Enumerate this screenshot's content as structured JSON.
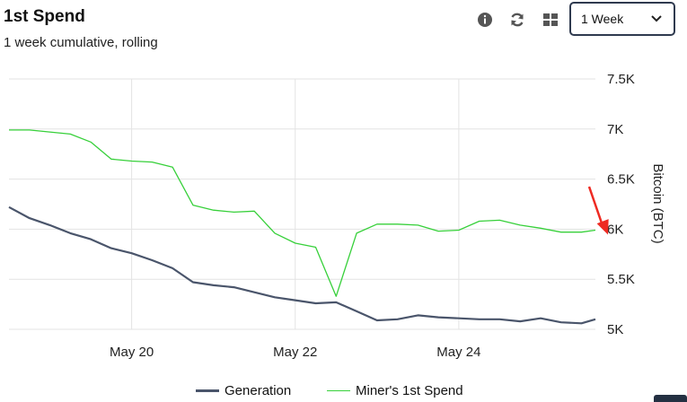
{
  "header": {
    "title": "1st Spend",
    "subtitle": "1 week cumulative, rolling"
  },
  "toolbar": {
    "icons": [
      "info-icon",
      "refresh-icon",
      "grid-icon"
    ],
    "range_selected": "1 Week"
  },
  "colors": {
    "generation": "#4a556b",
    "miners_1st_spend": "#37d03a",
    "annotation_arrow": "#ee2a22",
    "gridline": "#e3e3e3"
  },
  "chart_data": {
    "type": "line",
    "title": "1st Spend",
    "subtitle": "1 week cumulative, rolling",
    "xlabel": "",
    "ylabel": "Bitcoin (BTC)",
    "x_tick_labels": [
      "May 20",
      "May 22",
      "May 24"
    ],
    "x_range": [
      "May 18 12:00",
      "May 25 16:00"
    ],
    "y_ticks": [
      5000,
      5500,
      6000,
      6500,
      7000,
      7500
    ],
    "y_tick_labels": [
      "5K",
      "5.5K",
      "6K",
      "6.5K",
      "7K",
      "7.5K"
    ],
    "ylim": [
      5000,
      7500
    ],
    "grid": true,
    "legend_position": "bottom",
    "annotation": "red arrow pointing at the latest Miner's 1st Spend value",
    "x_days": [
      18.5,
      18.75,
      19.0,
      19.25,
      19.5,
      19.75,
      20.0,
      20.25,
      20.5,
      20.75,
      21.0,
      21.25,
      21.5,
      21.75,
      22.0,
      22.25,
      22.5,
      22.75,
      23.0,
      23.25,
      23.5,
      23.75,
      24.0,
      24.25,
      24.5,
      24.75,
      25.0,
      25.25,
      25.5,
      25.67
    ],
    "series": [
      {
        "name": "Generation",
        "values": [
          6220,
          6110,
          6040,
          5960,
          5900,
          5810,
          5760,
          5690,
          5610,
          5470,
          5440,
          5420,
          5370,
          5320,
          5290,
          5260,
          5270,
          5180,
          5090,
          5100,
          5140,
          5120,
          5110,
          5100,
          5100,
          5080,
          5110,
          5070,
          5060,
          5100
        ]
      },
      {
        "name": "Miner's 1st Spend",
        "values": [
          6990,
          6990,
          6970,
          6950,
          6870,
          6700,
          6680,
          6670,
          6620,
          6240,
          6190,
          6170,
          6180,
          5960,
          5860,
          5820,
          5330,
          5960,
          6050,
          6050,
          6040,
          5980,
          5990,
          6080,
          6090,
          6040,
          6010,
          5970,
          5970,
          5990
        ]
      }
    ]
  }
}
